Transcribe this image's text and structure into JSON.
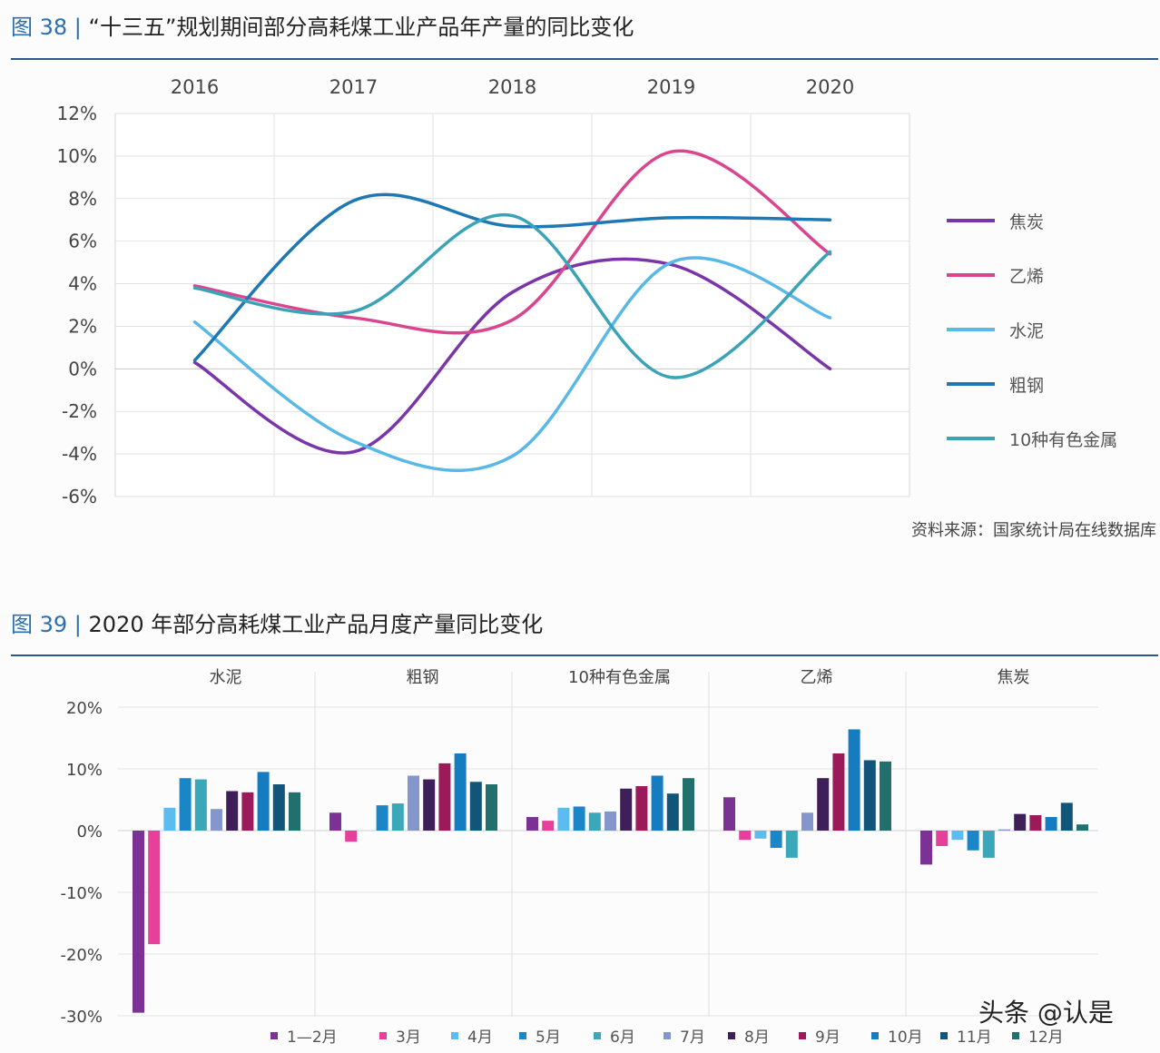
{
  "figure38": {
    "label": "图 38 |",
    "title": "“十三五”规划期间部分高耗煤工业产品年产量的同比变化"
  },
  "figure39": {
    "label": "图 39 |",
    "title": "2020 年部分高耗煤工业产品月度产量同比变化"
  },
  "source": "资料来源：国家统计局在线数据库",
  "watermark": "头条 @认是",
  "chart_data": [
    {
      "type": "line",
      "smooth": true,
      "categories": [
        "2016",
        "2017",
        "2018",
        "2019",
        "2020"
      ],
      "y_ticks": [
        "12%",
        "10%",
        "8%",
        "6%",
        "4%",
        "2%",
        "0%",
        "-2%",
        "-4%",
        "-6%"
      ],
      "ylim": [
        -6,
        12
      ],
      "grid": true,
      "legend_position": "right",
      "series": [
        {
          "name": "焦炭",
          "color": "#7a35a8",
          "values": [
            0.3,
            -3.9,
            3.6,
            4.9,
            0.0
          ]
        },
        {
          "name": "乙烯",
          "color": "#d9468f",
          "values": [
            3.9,
            2.4,
            2.3,
            10.2,
            5.4
          ]
        },
        {
          "name": "水泥",
          "color": "#58b8e6",
          "values": [
            2.2,
            -3.4,
            -4.1,
            5.0,
            2.4
          ]
        },
        {
          "name": "粗钢",
          "color": "#1e78b4",
          "values": [
            0.4,
            7.9,
            6.7,
            7.1,
            7.0
          ]
        },
        {
          "name": "10种有色金属",
          "color": "#3aa3b8",
          "values": [
            3.8,
            2.7,
            7.2,
            -0.4,
            5.5
          ]
        }
      ]
    },
    {
      "type": "bar",
      "groups": [
        "水泥",
        "粗钢",
        "10种有色金属",
        "乙烯",
        "焦炭"
      ],
      "y_ticks": [
        "20%",
        "10%",
        "0%",
        "-10%",
        "-20%",
        "-30%"
      ],
      "ylim": [
        -30,
        20
      ],
      "grid": true,
      "legend_position": "bottom",
      "series": [
        {
          "name": "1—2月",
          "color": "#7b3294",
          "values": [
            -29.5,
            2.9,
            2.2,
            5.4,
            -5.5
          ]
        },
        {
          "name": "3月",
          "color": "#e8409a",
          "values": [
            -18.4,
            -1.8,
            1.6,
            -1.5,
            -2.5
          ]
        },
        {
          "name": "4月",
          "color": "#5bbcef",
          "values": [
            3.7,
            null,
            3.7,
            -1.3,
            -1.5
          ]
        },
        {
          "name": "5月",
          "color": "#1a86c8",
          "values": [
            8.5,
            4.1,
            3.9,
            -2.8,
            -3.2
          ]
        },
        {
          "name": "6月",
          "color": "#3aa8b8",
          "values": [
            8.3,
            4.4,
            2.9,
            -4.4,
            -4.4
          ]
        },
        {
          "name": "7月",
          "color": "#8496cc",
          "values": [
            3.5,
            8.9,
            3.1,
            2.9,
            0.2
          ]
        },
        {
          "name": "8月",
          "color": "#3f1f5a",
          "values": [
            6.4,
            8.3,
            6.8,
            8.5,
            2.7
          ]
        },
        {
          "name": "9月",
          "color": "#9b1a5a",
          "values": [
            6.2,
            10.9,
            7.2,
            12.5,
            2.5
          ]
        },
        {
          "name": "10月",
          "color": "#147cbf",
          "values": [
            9.5,
            12.5,
            8.9,
            16.4,
            2.2
          ]
        },
        {
          "name": "11月",
          "color": "#12557a",
          "values": [
            7.5,
            7.9,
            6.0,
            11.4,
            4.5
          ]
        },
        {
          "name": "12月",
          "color": "#22706e",
          "values": [
            6.2,
            7.5,
            8.5,
            11.2,
            1.0
          ]
        }
      ]
    }
  ]
}
